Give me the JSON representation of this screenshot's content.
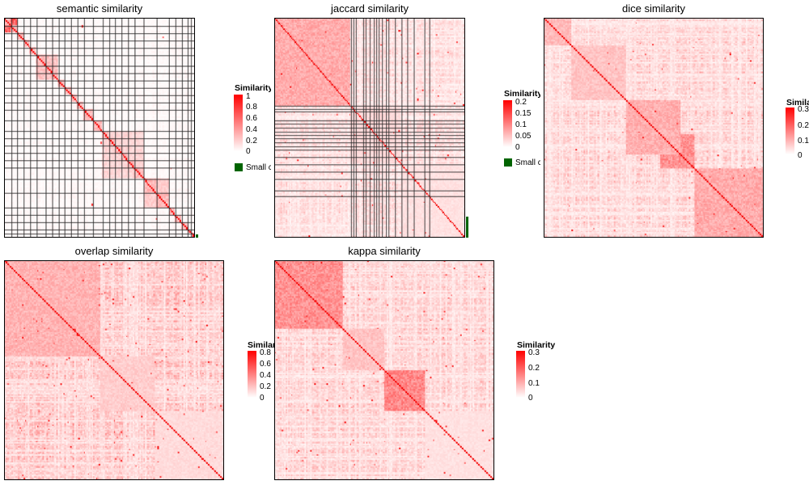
{
  "chart_data": [
    {
      "type": "heatmap",
      "title": "semantic similarity",
      "legend": {
        "title": "Similarity",
        "ticks": [
          "1",
          "0.8",
          "0.6",
          "0.4",
          "0.2",
          "0"
        ],
        "range": [
          0,
          1
        ],
        "placement": "right"
      },
      "extra_legend": {
        "label": "Small clusters",
        "color": "#006400"
      },
      "color_low": "#ffffff",
      "color_high": "#ff0000",
      "cluster_borders": true,
      "block_pattern": "block-diagonal with many small clusters; sparse off-diagonal blocks"
    },
    {
      "type": "heatmap",
      "title": "jaccard similarity",
      "legend": {
        "title": "Similarity",
        "ticks": [
          "0.2",
          "0.15",
          "0.1",
          "0.05",
          "0"
        ],
        "range": [
          0,
          0.2
        ],
        "placement": "right"
      },
      "extra_legend": {
        "label": "Small clusters",
        "color": "#006400"
      },
      "color_low": "#ffffff",
      "color_high": "#ff0000",
      "cluster_borders": true,
      "block_pattern": "large dense block at top-left; diagonal chain of small clusters"
    },
    {
      "type": "heatmap",
      "title": "dice similarity",
      "legend": {
        "title": "Similarity",
        "ticks": [
          "0.3",
          "0.2",
          "0.1",
          "0"
        ],
        "range": [
          0,
          0.3
        ],
        "placement": "right"
      },
      "color_low": "#ffffff",
      "color_high": "#ff0000",
      "cluster_borders": false,
      "block_pattern": "several dense diagonal blocks increasing toward bottom-right"
    },
    {
      "type": "heatmap",
      "title": "overlap similarity",
      "legend": {
        "title": "Similarity",
        "ticks": [
          "0.8",
          "0.6",
          "0.4",
          "0.2",
          "0"
        ],
        "range": [
          0,
          0.8
        ],
        "placement": "right"
      },
      "color_low": "#ffffff",
      "color_high": "#ff0000",
      "cluster_borders": false,
      "block_pattern": "diffuse high-similarity bands with a strong diagonal"
    },
    {
      "type": "heatmap",
      "title": "kappa similarity",
      "legend": {
        "title": "Similarity",
        "ticks": [
          "0.3",
          "0.2",
          "0.1",
          "0"
        ],
        "range": [
          0,
          0.3
        ],
        "placement": "right"
      },
      "color_low": "#ffffff",
      "color_high": "#ff0000",
      "cluster_borders": false,
      "block_pattern": "dense top-left block and dense central block along diagonal"
    }
  ]
}
